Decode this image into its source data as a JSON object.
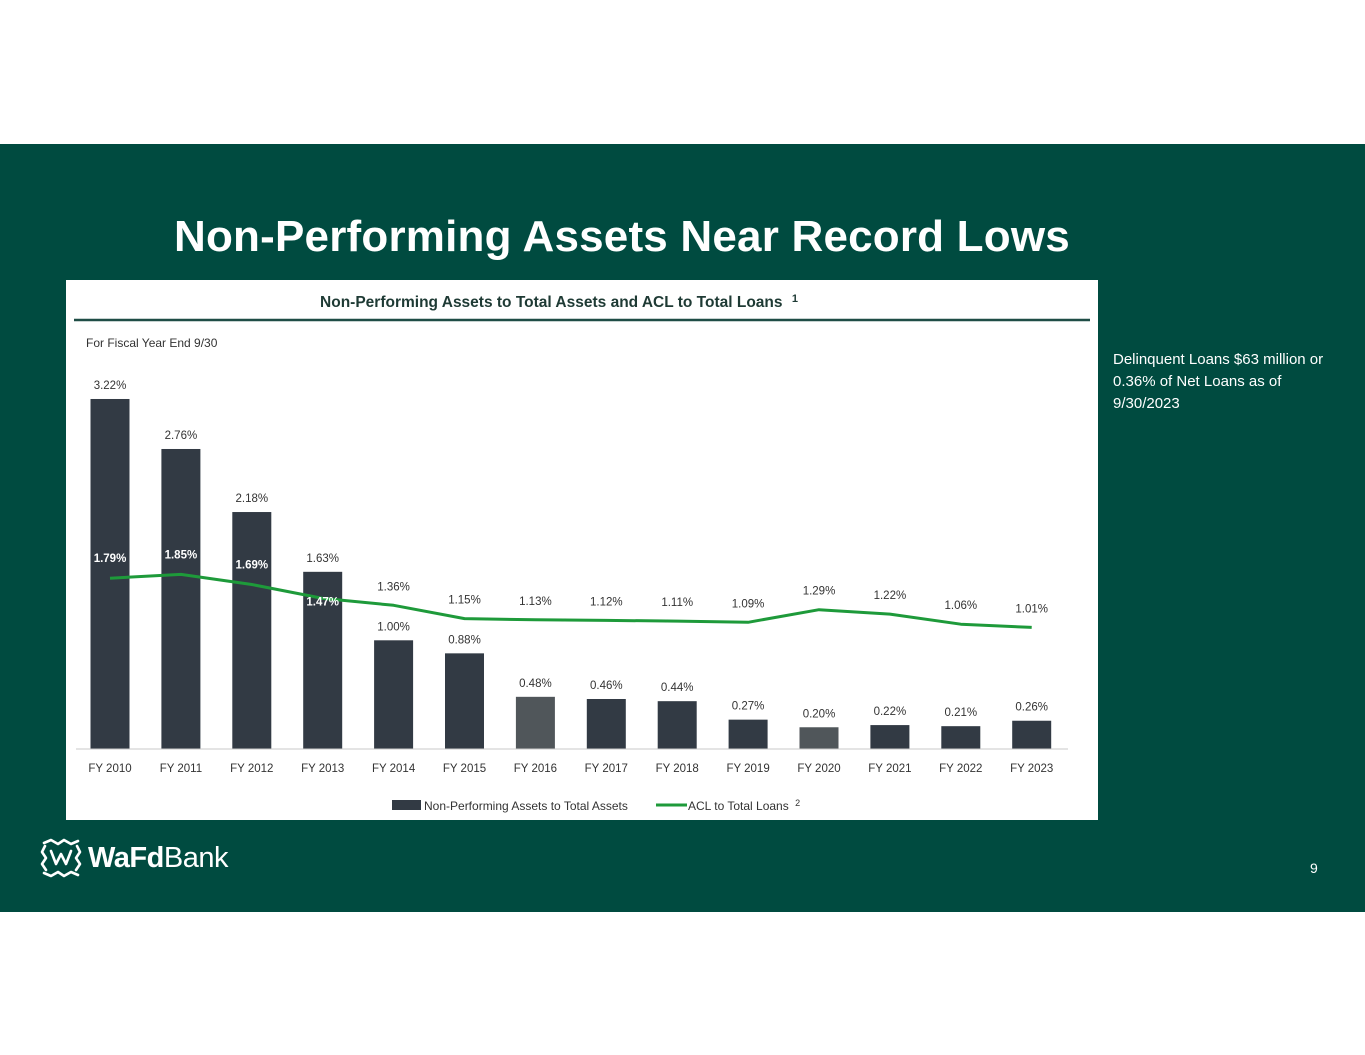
{
  "slide": {
    "title": "Non-Performing Assets Near Record Lows",
    "note": "Delinquent Loans $63 million or 0.36% of Net Loans as of 9/30/2023",
    "page_number": "9",
    "logo": {
      "bold": "WaFd",
      "light": "Bank"
    }
  },
  "colors": {
    "background": "#004b40",
    "bar": "#323a44",
    "bar_highlight": "#50565a",
    "line": "#1e9a3a",
    "title_rule": "#1f4d46"
  },
  "chart_data": {
    "type": "bar",
    "title": "Non-Performing Assets to Total Assets and ACL to Total Loans",
    "title_footnote": "1",
    "subtitle": "For Fiscal Year End 9/30",
    "categories": [
      "FY 2010",
      "FY 2011",
      "FY 2012",
      "FY 2013",
      "FY 2014",
      "FY 2015",
      "FY 2016",
      "FY 2017",
      "FY 2018",
      "FY 2019",
      "FY 2020",
      "FY 2021",
      "FY 2022",
      "FY 2023"
    ],
    "series": [
      {
        "name": "Non-Performing Assets to Total Assets",
        "type": "bar",
        "values": [
          3.22,
          2.76,
          2.18,
          1.63,
          1.0,
          0.88,
          0.48,
          0.46,
          0.44,
          0.27,
          0.2,
          0.22,
          0.21,
          0.26
        ],
        "labels": [
          "3.22%",
          "2.76%",
          "2.18%",
          "1.63%",
          "1.00%",
          "0.88%",
          "0.48%",
          "0.46%",
          "0.44%",
          "0.27%",
          "0.20%",
          "0.22%",
          "0.21%",
          "0.26%"
        ],
        "highlight": [
          false,
          false,
          false,
          false,
          false,
          false,
          true,
          false,
          false,
          false,
          true,
          false,
          false,
          false
        ]
      },
      {
        "name": "ACL to Total Loans",
        "footnote": "2",
        "type": "line",
        "values": [
          1.79,
          1.85,
          1.69,
          1.47,
          1.36,
          1.15,
          1.13,
          1.12,
          1.11,
          1.09,
          1.29,
          1.22,
          1.06,
          1.01
        ],
        "labels": [
          "1.79%",
          "1.85%",
          "1.69%",
          "1.47%",
          "1.36%",
          "1.15%",
          "1.13%",
          "1.12%",
          "1.11%",
          "1.09%",
          "1.29%",
          "1.22%",
          "1.06%",
          "1.01%"
        ]
      }
    ],
    "ylim": [
      0,
      3.6
    ],
    "grid": false,
    "legend_position": "bottom"
  }
}
